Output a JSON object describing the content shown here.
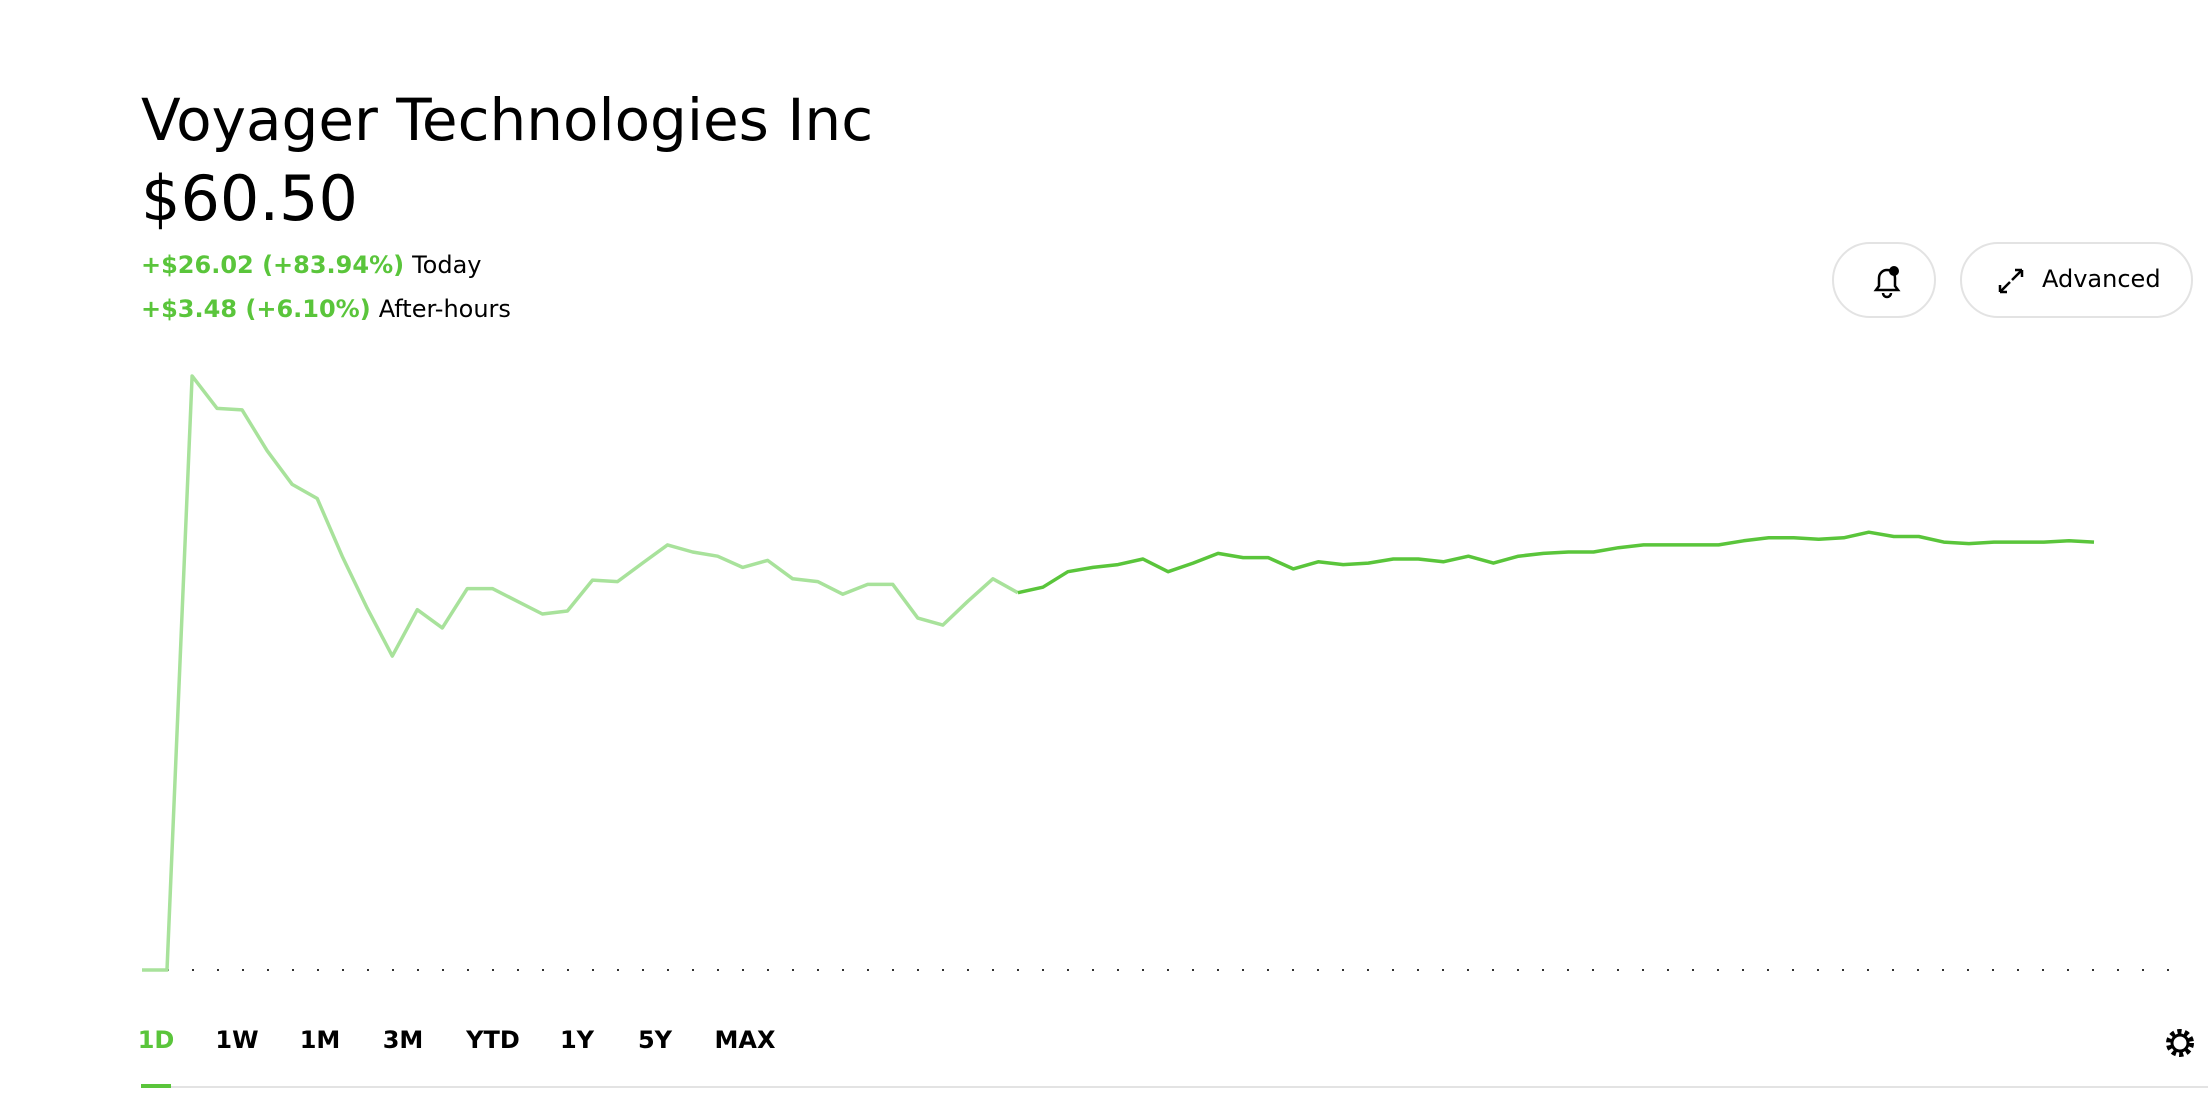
{
  "header": {
    "title": "Voyager Technologies Inc",
    "price": "$60.50",
    "today": {
      "change": "+$26.02 (+83.94%)",
      "label": "Today"
    },
    "after_hours": {
      "change": "+$3.48 (+6.10%)",
      "label": "After-hours"
    }
  },
  "buttons": {
    "advanced": "Advanced"
  },
  "ranges": [
    "1D",
    "1W",
    "1M",
    "3M",
    "YTD",
    "1Y",
    "5Y",
    "MAX"
  ],
  "chart_data": {
    "type": "line",
    "series": [
      {
        "color": "#a8e29b",
        "values": [
          34.48,
          34.48,
          70.6,
          68.63,
          68.54,
          66.06,
          64.01,
          63.15,
          59.64,
          56.48,
          53.57,
          56.39,
          55.28,
          57.67,
          57.67,
          56.9,
          56.13,
          56.31,
          58.19,
          58.1,
          59.22,
          60.33,
          59.9,
          59.64,
          58.96,
          59.39,
          58.27,
          58.1,
          57.33,
          57.93,
          57.93,
          55.88,
          55.45,
          56.9,
          58.27,
          57.42,
          null,
          null,
          null,
          null,
          null,
          null,
          null,
          null,
          null,
          null,
          null,
          null,
          null,
          null,
          null,
          null,
          null,
          null,
          null,
          null,
          null,
          null,
          null,
          null,
          null,
          null,
          null,
          null,
          null,
          null,
          null,
          null,
          null,
          null,
          null,
          null,
          null,
          null,
          null,
          null,
          null,
          null,
          null
        ]
      },
      {
        "color": "#5ac53b",
        "values": [
          null,
          null,
          null,
          null,
          null,
          null,
          null,
          null,
          null,
          null,
          null,
          null,
          null,
          null,
          null,
          null,
          null,
          null,
          null,
          null,
          null,
          null,
          null,
          null,
          null,
          null,
          null,
          null,
          null,
          null,
          null,
          null,
          null,
          null,
          null,
          57.42,
          57.76,
          58.7,
          58.96,
          59.13,
          59.47,
          58.7,
          59.22,
          59.81,
          59.56,
          59.56,
          58.87,
          59.3,
          59.13,
          59.22,
          59.47,
          59.47,
          59.3,
          59.64,
          59.22,
          59.64,
          59.81,
          59.9,
          59.9,
          60.16,
          60.33,
          60.33,
          60.33,
          60.33,
          60.58,
          60.76,
          60.76,
          60.67,
          60.76,
          61.1,
          60.84,
          60.84,
          60.5,
          60.41,
          60.5,
          60.5,
          60.5,
          60.58,
          60.5
        ]
      }
    ]
  }
}
